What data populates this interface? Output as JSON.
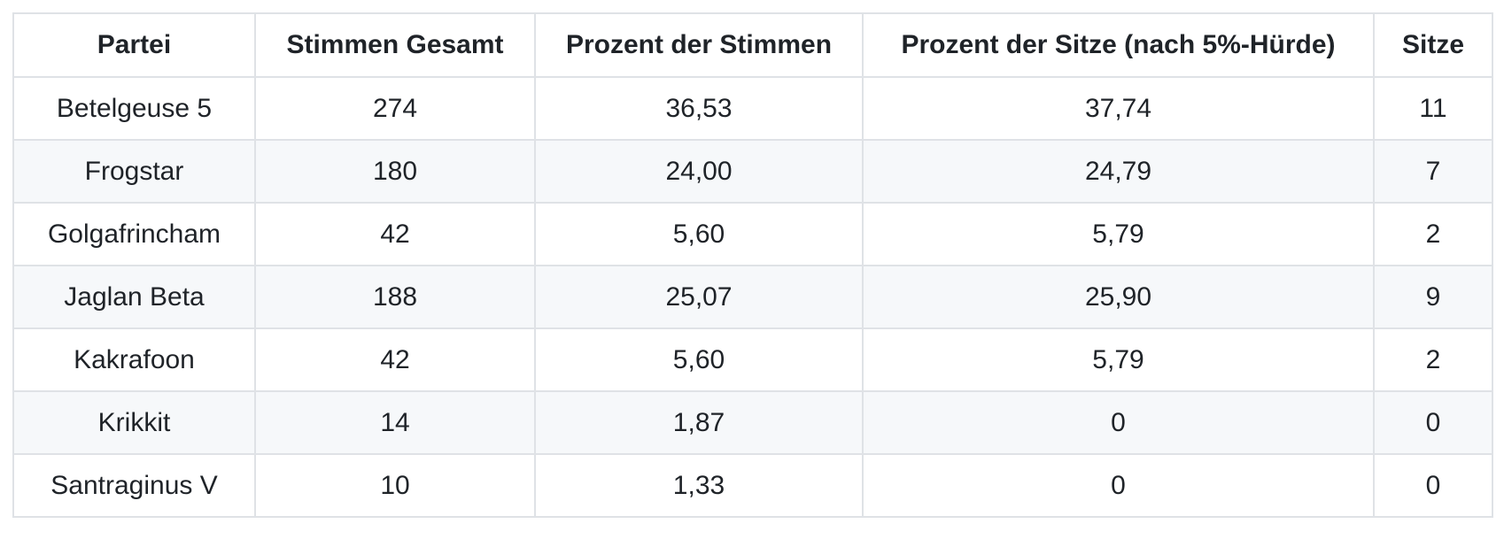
{
  "colors": {
    "row_stripe": "#f6f8fa",
    "border": "#dfe2e6",
    "text": "#1f2328",
    "background": "#ffffff"
  },
  "table": {
    "columns": [
      "Partei",
      "Stimmen Gesamt",
      "Prozent der Stimmen",
      "Prozent der Sitze (nach 5%-Hürde)",
      "Sitze"
    ],
    "rows": [
      [
        "Betelgeuse 5",
        "274",
        "36,53",
        "37,74",
        "11"
      ],
      [
        "Frogstar",
        "180",
        "24,00",
        "24,79",
        "7"
      ],
      [
        "Golgafrincham",
        "42",
        "5,60",
        "5,79",
        "2"
      ],
      [
        "Jaglan Beta",
        "188",
        "25,07",
        "25,90",
        "9"
      ],
      [
        "Kakrafoon",
        "42",
        "5,60",
        "5,79",
        "2"
      ],
      [
        "Krikkit",
        "14",
        "1,87",
        "0",
        "0"
      ],
      [
        "Santraginus V",
        "10",
        "1,33",
        "0",
        "0"
      ]
    ]
  }
}
